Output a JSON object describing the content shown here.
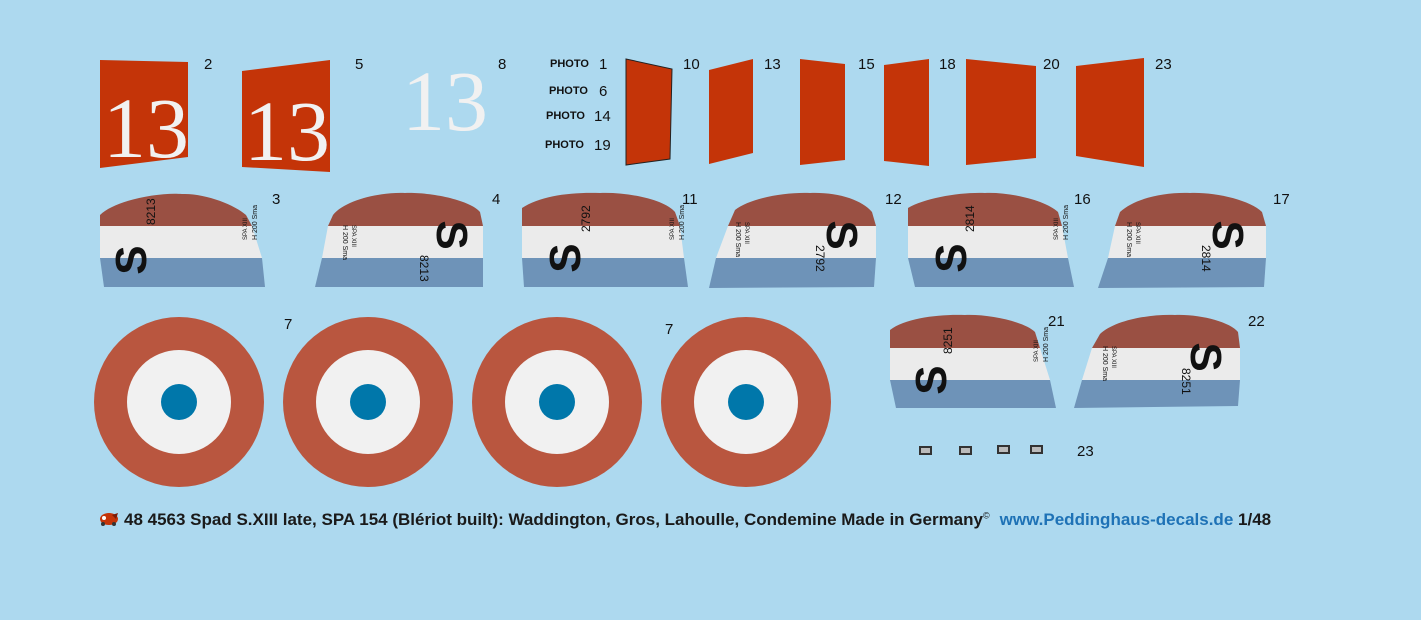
{
  "colors": {
    "background": "#add9ef",
    "red": "#c43408",
    "roundel_red": "#b9563f",
    "white": "#f1f1f1",
    "blue_center": "#0077aa",
    "rudder_red": "#9a5043",
    "rudder_white": "#ebebeb",
    "rudder_blue": "#6e93b8",
    "url": "#1e72b6"
  },
  "numbers": [
    "2",
    "5",
    "8",
    "1",
    "6",
    "14",
    "19",
    "10",
    "13",
    "15",
    "18",
    "20",
    "23",
    "3",
    "4",
    "11",
    "12",
    "16",
    "17",
    "7",
    "7",
    "21",
    "22",
    "23"
  ],
  "photo_label": "PHOTO",
  "emblem_13": "13",
  "rudder_letter": "S",
  "serials": [
    "8213",
    "2792",
    "2814",
    "8251"
  ],
  "spa_text": "SPA XIII",
  "hp_text": "H 200 Sma",
  "footer": {
    "title": "48 4563 Spad S.XIII late, SPA 154 (Blériot built): Waddington, Gros, Lahoulle, Condemine  Made in Germany",
    "registered": "©",
    "url": "www.Peddinghaus-decals.de",
    "scale": "1/48"
  },
  "icons": [
    "peddinghaus-logo-icon"
  ]
}
